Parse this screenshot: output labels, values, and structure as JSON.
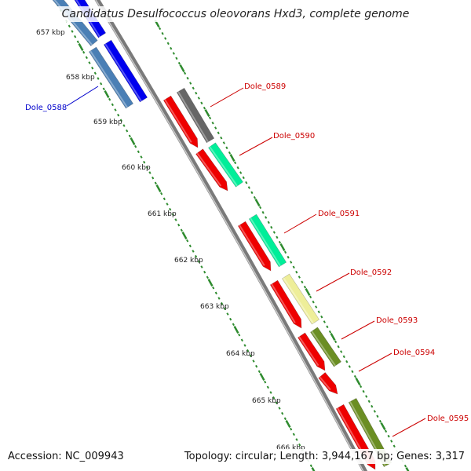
{
  "title": "Candidatus Desulfococcus oleovorans Hxd3, complete genome",
  "footer": {
    "accession": "Accession: NC_009943",
    "summary": "Topology: circular; Length: 3,944,167 bp; Genes: 3,317"
  },
  "colors": {
    "backbone": "#888888",
    "tick_dots": "#2e8b2e",
    "forward_label": "#cc0000",
    "reverse_label": "#0000cc"
  },
  "kbp_labels": [
    "657 kbp",
    "658 kbp",
    "659 kbp",
    "660 kbp",
    "661 kbp",
    "662 kbp",
    "663 kbp",
    "664 kbp",
    "665 kbp",
    "666 kbp"
  ],
  "gene_labels": [
    {
      "name": "Dole_0588",
      "strand": "reverse"
    },
    {
      "name": "Dole_0589",
      "strand": "forward"
    },
    {
      "name": "Dole_0590",
      "strand": "forward"
    },
    {
      "name": "Dole_0591",
      "strand": "forward"
    },
    {
      "name": "Dole_0592",
      "strand": "forward"
    },
    {
      "name": "Dole_0593",
      "strand": "forward"
    },
    {
      "name": "Dole_0594",
      "strand": "forward"
    },
    {
      "name": "Dole_0595",
      "strand": "forward"
    }
  ],
  "feature_colors": {
    "reverse_cds": "#0000ee",
    "reverse_cds_2": "#4a7fb5",
    "cds": "#ee0000",
    "gray": "#666666",
    "aqua": "#00ee99",
    "pale_yellow": "#eeee99",
    "olive": "#6b8e23"
  }
}
